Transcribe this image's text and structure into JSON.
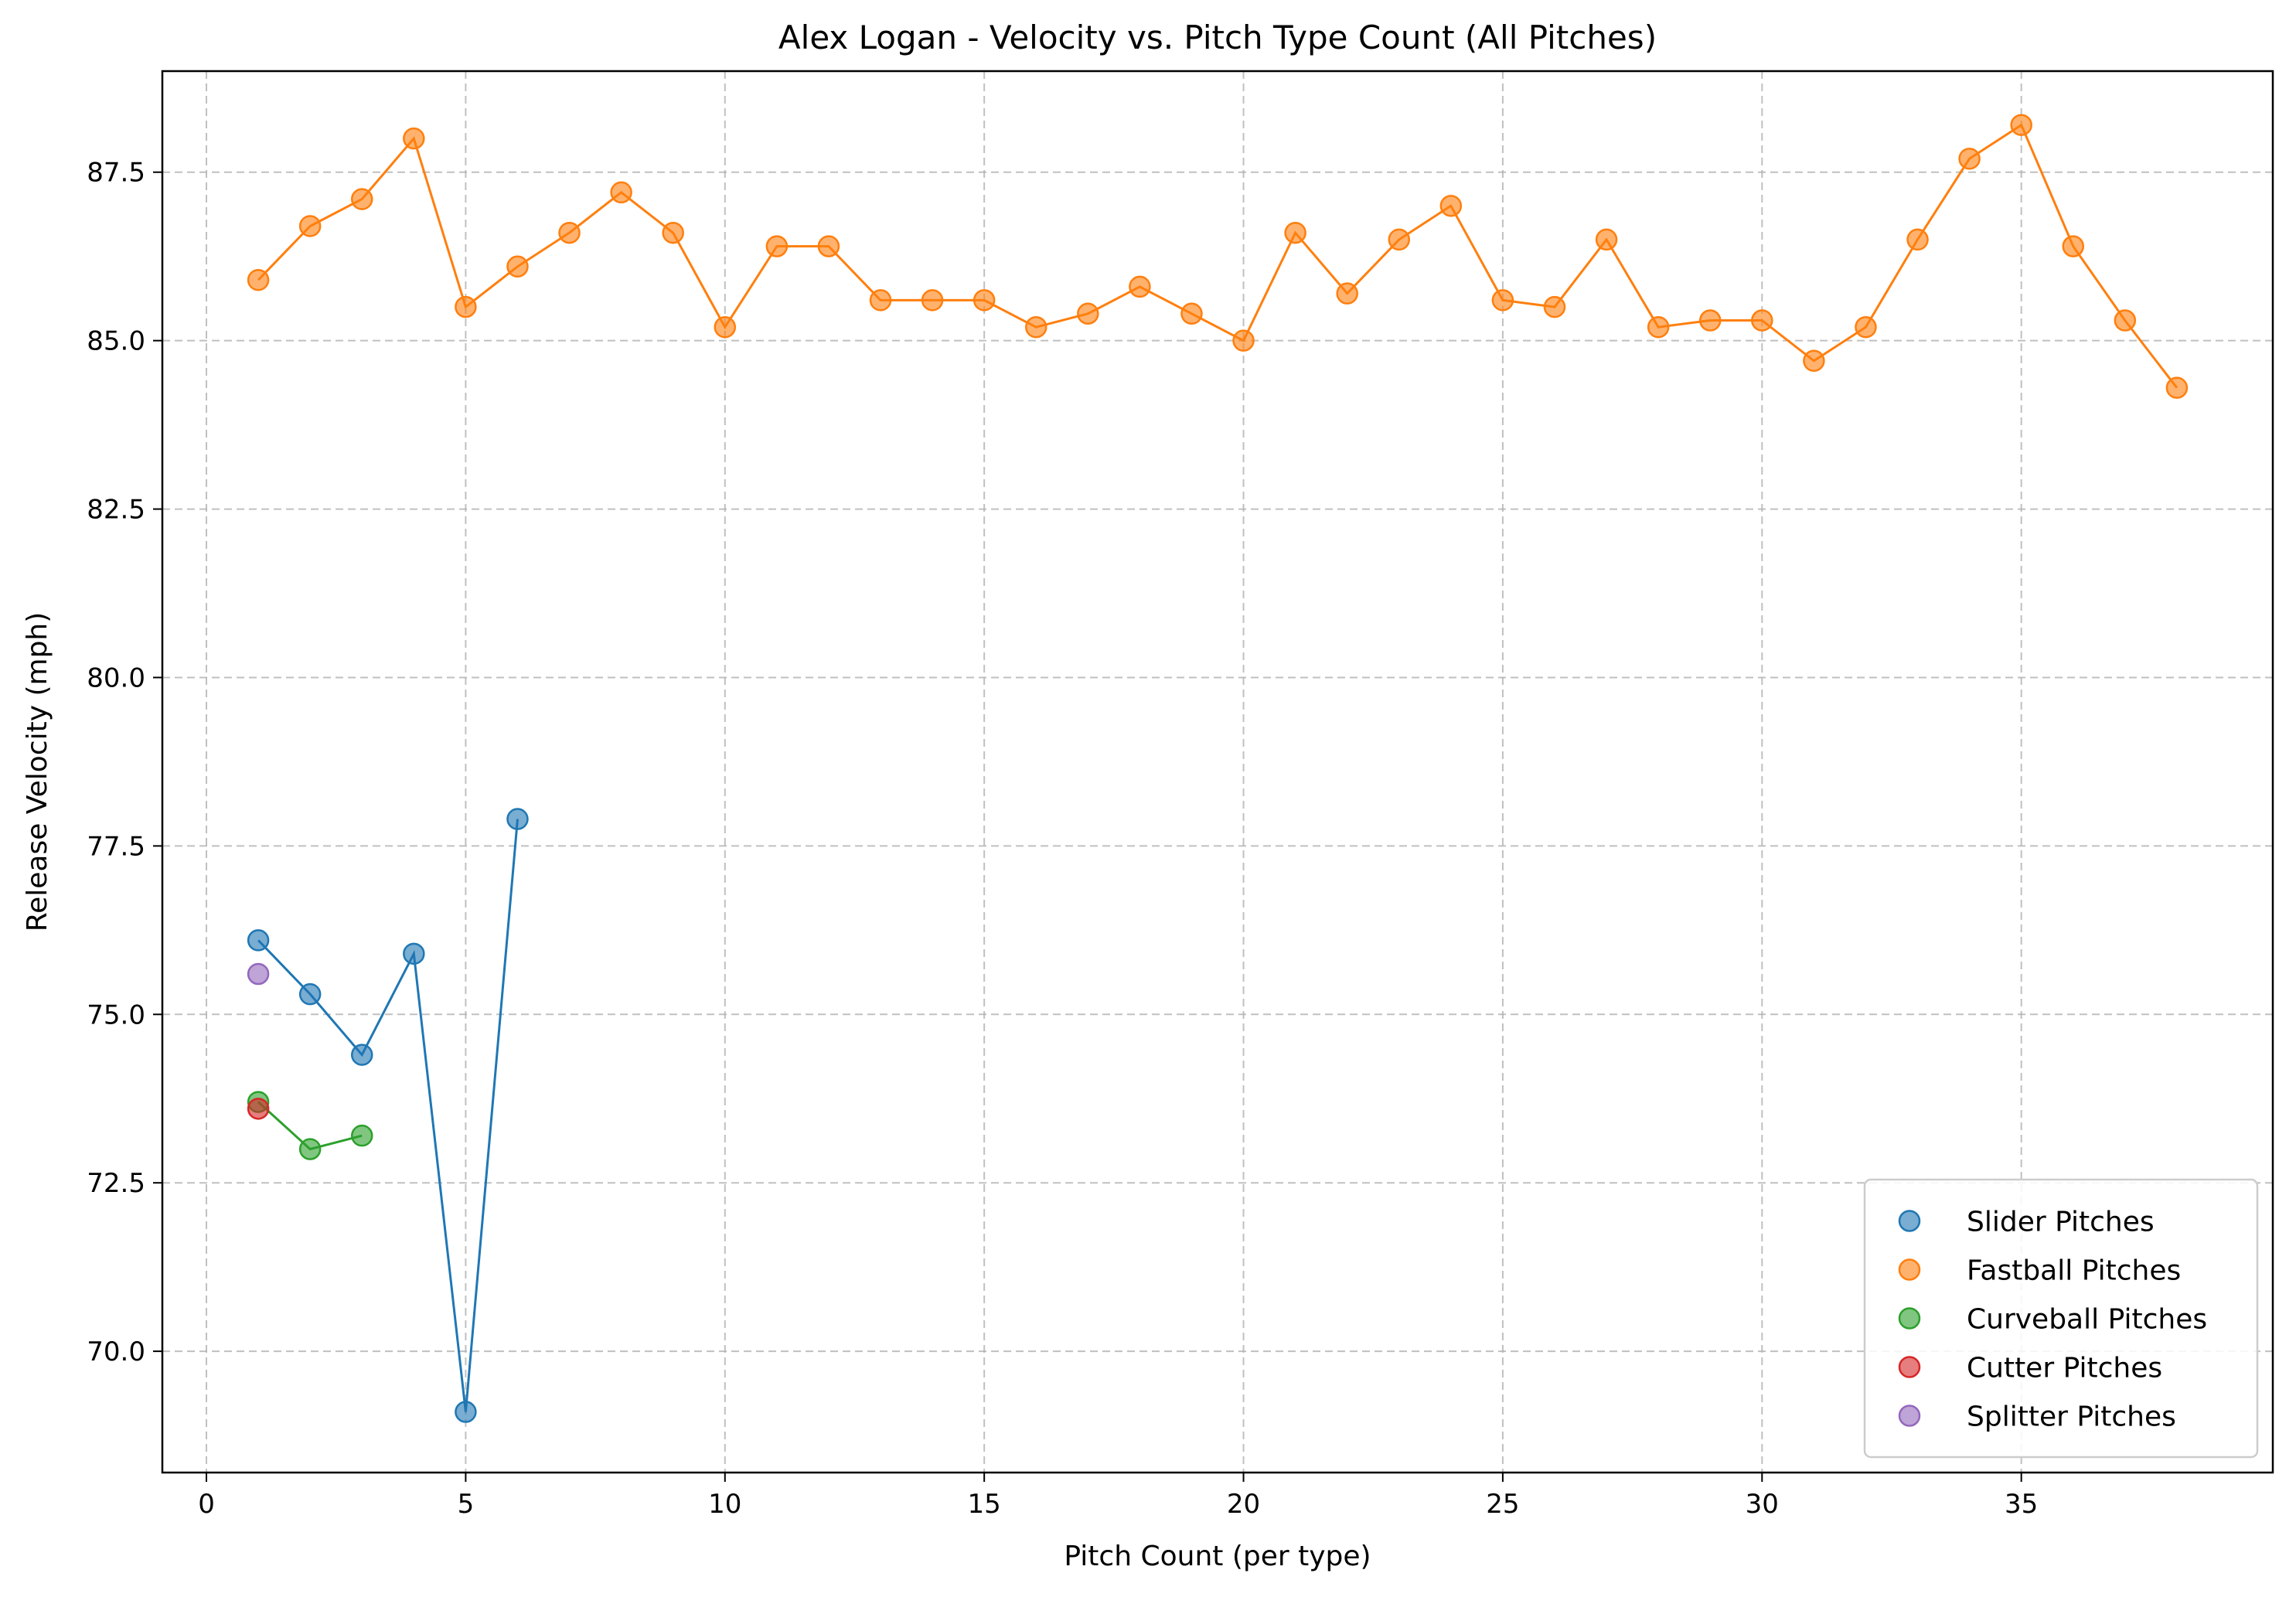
{
  "chart_data": {
    "type": "scatter",
    "title": "Alex Logan - Velocity vs. Pitch Type Count (All Pitches)",
    "xlabel": "Pitch Count (per type)",
    "ylabel": "Release Velocity (mph)",
    "xlim": [
      -0.85,
      39.85
    ],
    "ylim": [
      68.2,
      89.0
    ],
    "xticks": [
      0,
      5,
      10,
      15,
      20,
      25,
      30,
      35
    ],
    "yticks": [
      70.0,
      72.5,
      75.0,
      77.5,
      80.0,
      82.5,
      85.0,
      87.5
    ],
    "grid": true,
    "legend_position": "lower-right",
    "series": [
      {
        "name": "Slider Pitches",
        "color": "#1f77b4",
        "x": [
          1,
          2,
          3,
          4,
          5,
          6
        ],
        "y": [
          76.1,
          75.3,
          74.4,
          75.9,
          69.1,
          77.9
        ]
      },
      {
        "name": "Fastball Pitches",
        "color": "#ff7f0e",
        "x": [
          1,
          2,
          3,
          4,
          5,
          6,
          7,
          8,
          9,
          10,
          11,
          12,
          13,
          14,
          15,
          16,
          17,
          18,
          19,
          20,
          21,
          22,
          23,
          24,
          25,
          26,
          27,
          28,
          29,
          30,
          31,
          32,
          33,
          34,
          35,
          36,
          37,
          38
        ],
        "y": [
          85.9,
          86.7,
          87.1,
          88.0,
          85.5,
          86.1,
          86.6,
          87.2,
          86.6,
          85.2,
          86.4,
          86.4,
          85.6,
          85.6,
          85.6,
          85.2,
          85.4,
          85.8,
          85.4,
          85.0,
          86.6,
          85.7,
          86.5,
          87.0,
          85.6,
          85.5,
          86.5,
          85.2,
          85.3,
          85.3,
          84.7,
          85.2,
          86.5,
          87.7,
          88.2,
          86.4,
          85.3,
          84.3
        ]
      },
      {
        "name": "Curveball Pitches",
        "color": "#2ca02c",
        "x": [
          1,
          2,
          3
        ],
        "y": [
          73.7,
          73.0,
          73.2
        ]
      },
      {
        "name": "Cutter Pitches",
        "color": "#d62728",
        "x": [
          1
        ],
        "y": [
          73.6
        ]
      },
      {
        "name": "Splitter Pitches",
        "color": "#9467bd",
        "x": [
          1
        ],
        "y": [
          75.6
        ]
      }
    ]
  }
}
